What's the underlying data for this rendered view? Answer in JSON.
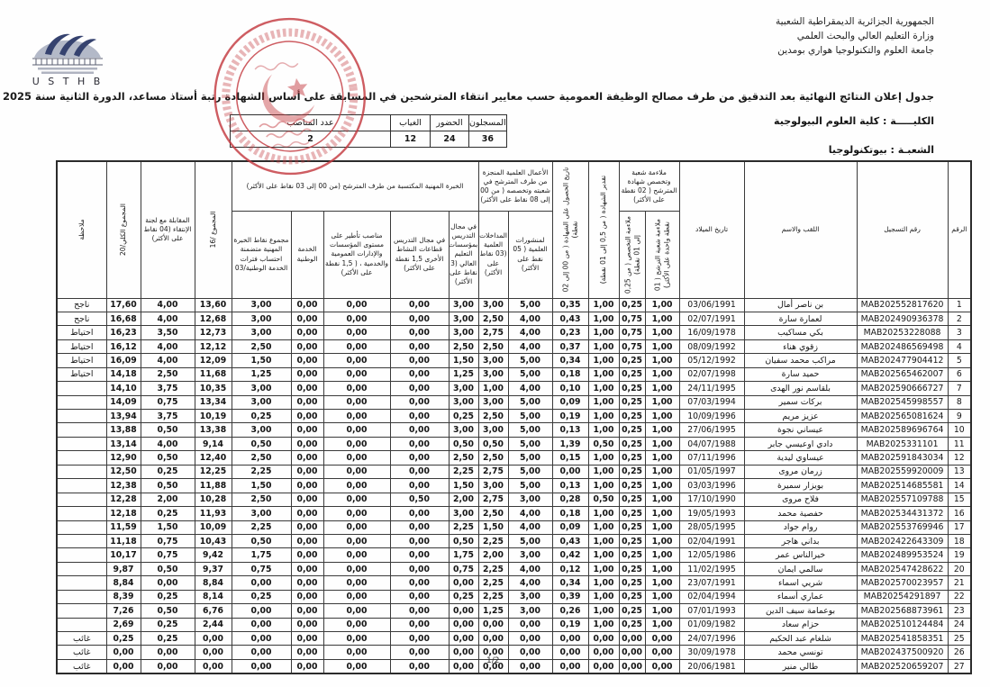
{
  "page": {
    "government": [
      "الجمهورية الجزائرية الديمقراطية الشعبية",
      "وزارة التعليم العالي والبحث العلمي",
      "جامعة العلوم والتكنولوجيا هواري بومدين"
    ],
    "logo_text": "U S T H B",
    "title": "جدول  إعلان النتائج النهائية بعد التدقيق من طرف مصالح الوظيفة العمومية  حسب معايير انتقاء المترشحين في المسابقة على أساس الشهادة رتبة أستاذ مساعد، الدورة الثانية سنة 2025",
    "faculty_line": "الكليـــــة : كلية العلوم البيولوجية",
    "branch_line": "الشعبـة : بيوتكنولوجيا",
    "page_number": "1/2"
  },
  "stats": {
    "headers": [
      "المسجلون",
      "الحضور",
      "الغياب",
      "عدد المناصب"
    ],
    "values": [
      "36",
      "24",
      "12",
      "2"
    ]
  },
  "table": {
    "headers": {
      "rank": "الرقم",
      "reg": "رقم التسجيل",
      "name": "اللقب والاسم",
      "dob": "تاريخ الميلاد",
      "grp_suitability": "ملاءمة شعبة وتخصص شهادة المترشح ( 02 نقطة على الأكثر)",
      "branch_fit": "ملاءمة شعبة الترشح ( 01 نقطة واحدة على الأكثر)",
      "spec_fit": "ملاءمة التخصص ( من 0,25 إلى 01 نقطة)",
      "degree_grade": "تقدير الشهادة ( من 0,5 إلى 01 نقطة)",
      "degree_date": "تاريخ الحصول على الشهادة ( من 00 إلى 02 نقطة)",
      "grp_works": "الأعمال العلمية المنجزة من طرف المترشح في شعبته وتخصصه ( من 00 إلى 08 نقاط على الأكثر)",
      "publications": "لمنشورات العلمية ( 05 نقط على الأكثر)",
      "interventions": "المداخلات العلمية (03 نقاط على الأكثر)",
      "grp_experience": "الخبرة المهنية المكتسبة من طرف المترشح (من 00 إلى 03 نقاط على الأكثر)",
      "teach_higher": "في مجال التدريس بمؤسسات التعليم العالي (3 نقاط على الأكثر)",
      "teach_other": "في مجال التدريس قطاعات النشاط الأخرى 1,5 نقطة على الأكثر)",
      "supervision": "مناصب تأطير على مستوى المؤسسات والإدارات العمومية والخدمية ، ( 1,5 نقطة على الأكثر)",
      "national_service": "الخدمة الوطنية",
      "exp_total": "مجموع نقاط الخبرة المهنية متضمنة احتساب فترات الخدمة الوطنية/03",
      "total16": "المجموع /16",
      "interview": "المقابلة مع لجنة الإنتقاء (04 نقاط على الأكثر)",
      "total20": "المجموع الكلي/20",
      "remark": "ملاحظة"
    },
    "rows": [
      [
        "1",
        "MAB202552817620",
        "بن ناصر أمال",
        "03/06/1991",
        "1,00",
        "0,25",
        "1,00",
        "0,35",
        "5,00",
        "3,00",
        "3,00",
        "0,00",
        "0,00",
        "0,00",
        "3,00",
        "13,60",
        "4,00",
        "17,60",
        "ناجح"
      ],
      [
        "2",
        "MAB202490936378",
        "لعمارة سارة",
        "02/07/1991",
        "1,00",
        "0,75",
        "1,00",
        "0,43",
        "4,00",
        "2,50",
        "3,00",
        "0,00",
        "0,00",
        "0,00",
        "3,00",
        "12,68",
        "4,00",
        "16,68",
        "ناجح"
      ],
      [
        "3",
        "MAB20253228088",
        "بكي مساكيب",
        "16/09/1978",
        "1,00",
        "0,75",
        "1,00",
        "0,23",
        "4,00",
        "2,75",
        "3,00",
        "0,00",
        "0,00",
        "0,00",
        "3,00",
        "12,73",
        "3,50",
        "16,23",
        "احتياط"
      ],
      [
        "4",
        "MAB202486569498",
        "زقوي هناء",
        "08/09/1992",
        "1,00",
        "0,75",
        "1,00",
        "0,37",
        "4,00",
        "2,50",
        "2,50",
        "0,00",
        "0,00",
        "0,00",
        "2,50",
        "12,12",
        "4,00",
        "16,12",
        "احتياط"
      ],
      [
        "5",
        "MAB202477904412",
        "مراكب محمد سفيان",
        "05/12/1992",
        "1,00",
        "0,25",
        "1,00",
        "0,34",
        "5,00",
        "3,00",
        "1,50",
        "0,00",
        "0,00",
        "0,00",
        "1,50",
        "12,09",
        "4,00",
        "16,09",
        "احتياط"
      ],
      [
        "6",
        "MAB202565462007",
        "حميد سارة",
        "02/07/1998",
        "1,00",
        "0,25",
        "1,00",
        "0,18",
        "5,00",
        "3,00",
        "1,25",
        "0,00",
        "0,00",
        "0,00",
        "1,25",
        "11,68",
        "2,50",
        "14,18",
        "احتياط"
      ],
      [
        "7",
        "MAB202590666727",
        "بلقاسم نور الهدى",
        "24/11/1995",
        "1,00",
        "0,25",
        "1,00",
        "0,10",
        "4,00",
        "1,00",
        "3,00",
        "0,00",
        "0,00",
        "0,00",
        "3,00",
        "10,35",
        "3,75",
        "14,10",
        ""
      ],
      [
        "8",
        "MAB202545998557",
        "بركات سمير",
        "07/03/1994",
        "1,00",
        "0,25",
        "1,00",
        "0,09",
        "5,00",
        "3,00",
        "3,00",
        "0,00",
        "0,00",
        "0,00",
        "3,00",
        "13,34",
        "0,75",
        "14,09",
        ""
      ],
      [
        "9",
        "MAB202565081624",
        "عزيز مريم",
        "10/09/1996",
        "1,00",
        "0,25",
        "1,00",
        "0,19",
        "5,00",
        "2,50",
        "0,25",
        "0,00",
        "0,00",
        "0,00",
        "0,25",
        "10,19",
        "3,75",
        "13,94",
        ""
      ],
      [
        "10",
        "MAB202589696764",
        "عيساني نجوة",
        "27/06/1995",
        "1,00",
        "0,25",
        "1,00",
        "0,13",
        "5,00",
        "3,00",
        "3,00",
        "0,00",
        "0,00",
        "0,00",
        "3,00",
        "13,38",
        "0,50",
        "13,88",
        ""
      ],
      [
        "11",
        "MAB2025331101",
        "دادي اوعيسي جابر",
        "04/07/1988",
        "1,00",
        "0,25",
        "0,50",
        "1,39",
        "5,00",
        "0,50",
        "0,50",
        "0,00",
        "0,00",
        "0,00",
        "0,50",
        "9,14",
        "4,00",
        "13,14",
        ""
      ],
      [
        "12",
        "MAB202591843034",
        "عيساوي ليدية",
        "07/11/1996",
        "1,00",
        "0,25",
        "1,00",
        "0,15",
        "5,00",
        "2,50",
        "2,50",
        "0,00",
        "0,00",
        "0,00",
        "2,50",
        "12,40",
        "0,50",
        "12,90",
        ""
      ],
      [
        "13",
        "MAB202559920009",
        "زرمان مروى",
        "01/05/1997",
        "1,00",
        "0,25",
        "1,00",
        "0,00",
        "5,00",
        "2,75",
        "2,25",
        "0,00",
        "0,00",
        "0,00",
        "2,25",
        "12,25",
        "0,25",
        "12,50",
        ""
      ],
      [
        "14",
        "MAB202514685581",
        "بويزار سميرة",
        "03/03/1996",
        "1,00",
        "0,25",
        "1,00",
        "0,13",
        "5,00",
        "3,00",
        "1,50",
        "0,00",
        "0,00",
        "0,00",
        "1,50",
        "11,88",
        "0,50",
        "12,38",
        ""
      ],
      [
        "15",
        "MAB202557109788",
        "فلاح مروى",
        "17/10/1990",
        "1,00",
        "0,25",
        "0,50",
        "0,28",
        "3,00",
        "2,75",
        "2,00",
        "0,50",
        "0,00",
        "0,00",
        "2,50",
        "10,28",
        "2,00",
        "12,28",
        ""
      ],
      [
        "16",
        "MAB202534431372",
        "حفصية محمد",
        "19/05/1993",
        "1,00",
        "0,25",
        "1,00",
        "0,18",
        "4,00",
        "2,50",
        "3,00",
        "0,00",
        "0,00",
        "0,00",
        "3,00",
        "11,93",
        "0,25",
        "12,18",
        ""
      ],
      [
        "17",
        "MAB202553769946",
        "روام جواد",
        "28/05/1995",
        "1,00",
        "0,25",
        "1,00",
        "0,09",
        "4,00",
        "1,50",
        "2,25",
        "0,00",
        "0,00",
        "0,00",
        "2,25",
        "10,09",
        "1,50",
        "11,59",
        ""
      ],
      [
        "18",
        "MAB202422643309",
        "بداني هاجر",
        "02/04/1991",
        "1,00",
        "0,25",
        "1,00",
        "0,43",
        "5,00",
        "2,25",
        "0,50",
        "0,00",
        "0,00",
        "0,00",
        "0,50",
        "10,43",
        "0,75",
        "11,18",
        ""
      ],
      [
        "19",
        "MAB202489953524",
        "خيرالناس عمر",
        "12/05/1986",
        "1,00",
        "0,25",
        "1,00",
        "0,42",
        "3,00",
        "2,00",
        "1,75",
        "0,00",
        "0,00",
        "0,00",
        "1,75",
        "9,42",
        "0,75",
        "10,17",
        ""
      ],
      [
        "20",
        "MAB202547428622",
        "سالمي ايمان",
        "11/02/1995",
        "1,00",
        "0,25",
        "1,00",
        "0,12",
        "4,00",
        "2,25",
        "0,75",
        "0,00",
        "0,00",
        "0,00",
        "0,75",
        "9,37",
        "0,50",
        "9,87",
        ""
      ],
      [
        "21",
        "MAB202570023957",
        "شريي اسماء",
        "23/07/1991",
        "1,00",
        "0,25",
        "1,00",
        "0,34",
        "4,00",
        "2,25",
        "0,00",
        "0,00",
        "0,00",
        "0,00",
        "0,00",
        "8,84",
        "0,00",
        "8,84",
        ""
      ],
      [
        "22",
        "MAB20254291897",
        "عماري أسماء",
        "02/04/1994",
        "1,00",
        "0,25",
        "1,00",
        "0,39",
        "3,00",
        "2,25",
        "0,25",
        "0,00",
        "0,00",
        "0,00",
        "0,25",
        "8,14",
        "0,25",
        "8,39",
        ""
      ],
      [
        "23",
        "MAB202568873961",
        "بوعمامة سيف الدين",
        "07/01/1993",
        "1,00",
        "0,25",
        "1,00",
        "0,26",
        "3,00",
        "1,25",
        "0,00",
        "0,00",
        "0,00",
        "0,00",
        "0,00",
        "6,76",
        "0,50",
        "7,26",
        ""
      ],
      [
        "24",
        "MAB202510124484",
        "حزام سعاد",
        "01/09/1982",
        "1,00",
        "0,25",
        "1,00",
        "0,19",
        "0,00",
        "0,00",
        "0,00",
        "0,00",
        "0,00",
        "0,00",
        "0,00",
        "2,44",
        "0,25",
        "2,69",
        ""
      ],
      [
        "25",
        "MAB202541858351",
        "شلغام عبد الحكيم",
        "24/07/1996",
        "0,00",
        "0,00",
        "0,00",
        "0,00",
        "0,00",
        "0,00",
        "0,00",
        "0,00",
        "0,00",
        "0,00",
        "0,00",
        "0,00",
        "0,25",
        "0,25",
        "غائب"
      ],
      [
        "26",
        "MAB202437500920",
        "تونسي محمد",
        "30/09/1978",
        "0,00",
        "0,00",
        "0,00",
        "0,00",
        "0,00",
        "0,00",
        "0,00",
        "0,00",
        "0,00",
        "0,00",
        "0,00",
        "0,00",
        "0,00",
        "0,00",
        "غائب"
      ],
      [
        "27",
        "MAB202520659207",
        "طالي منير",
        "20/06/1981",
        "0,00",
        "0,00",
        "0,00",
        "0,00",
        "0,00",
        "0,00",
        "0,00",
        "0,00",
        "0,00",
        "0,00",
        "0,00",
        "0,00",
        "0,00",
        "0,00",
        "غائب"
      ]
    ]
  }
}
